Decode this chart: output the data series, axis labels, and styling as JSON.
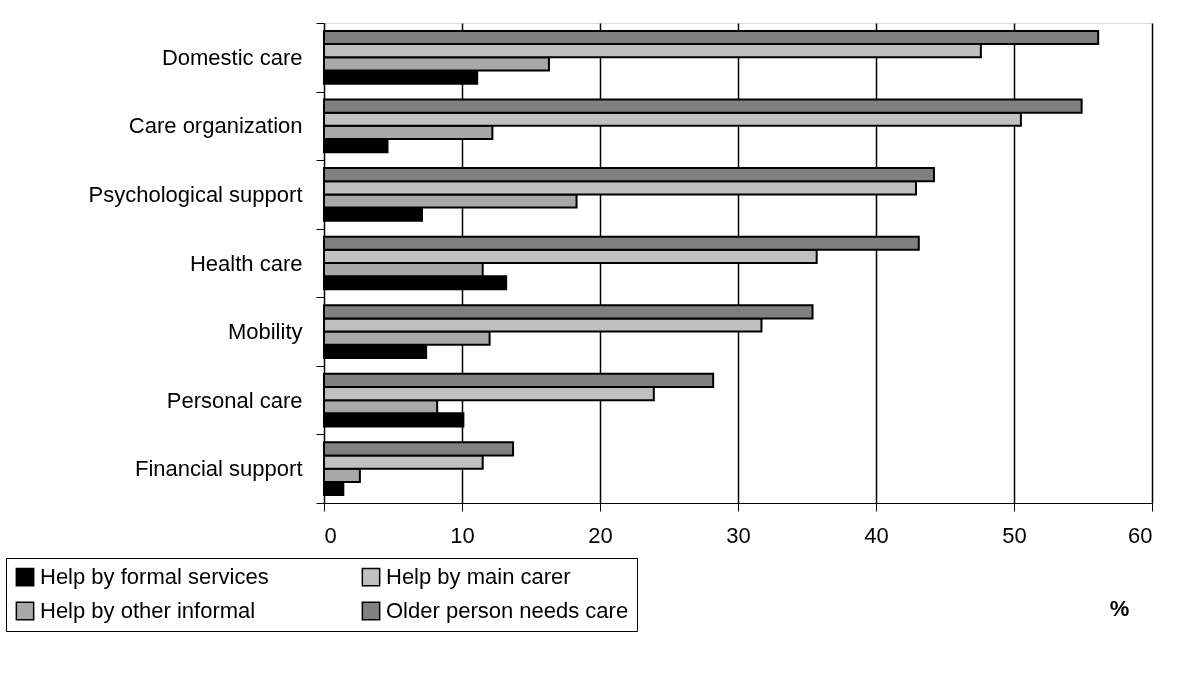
{
  "chart_data": {
    "type": "bar",
    "orientation": "horizontal",
    "xlabel": "%",
    "categories": [
      "Domestic care",
      "Care organization",
      "Psychological support",
      "Health care",
      "Mobility",
      "Personal care",
      "Financial support"
    ],
    "series": [
      {
        "name": "Help by formal services",
        "color": "#000000",
        "values": [
          11.1,
          4.6,
          7.1,
          13.2,
          7.4,
          10.1,
          1.4
        ]
      },
      {
        "name": "Help by other informal",
        "color": "#a8a8a8",
        "values": [
          16.3,
          12.2,
          18.3,
          11.5,
          12.0,
          8.2,
          2.6
        ]
      },
      {
        "name": "Help by main carer",
        "color": "#c0c0c0",
        "values": [
          47.6,
          50.5,
          42.9,
          35.7,
          31.7,
          23.9,
          11.5
        ]
      },
      {
        "name": "Older person needs care",
        "color": "#808080",
        "values": [
          56.1,
          54.9,
          44.2,
          43.1,
          35.4,
          28.2,
          13.7
        ]
      }
    ],
    "xlim": [
      0,
      60
    ],
    "xticks": [
      0,
      10,
      20,
      30,
      40,
      50,
      60
    ],
    "grid": "x",
    "legend": "bottom"
  }
}
